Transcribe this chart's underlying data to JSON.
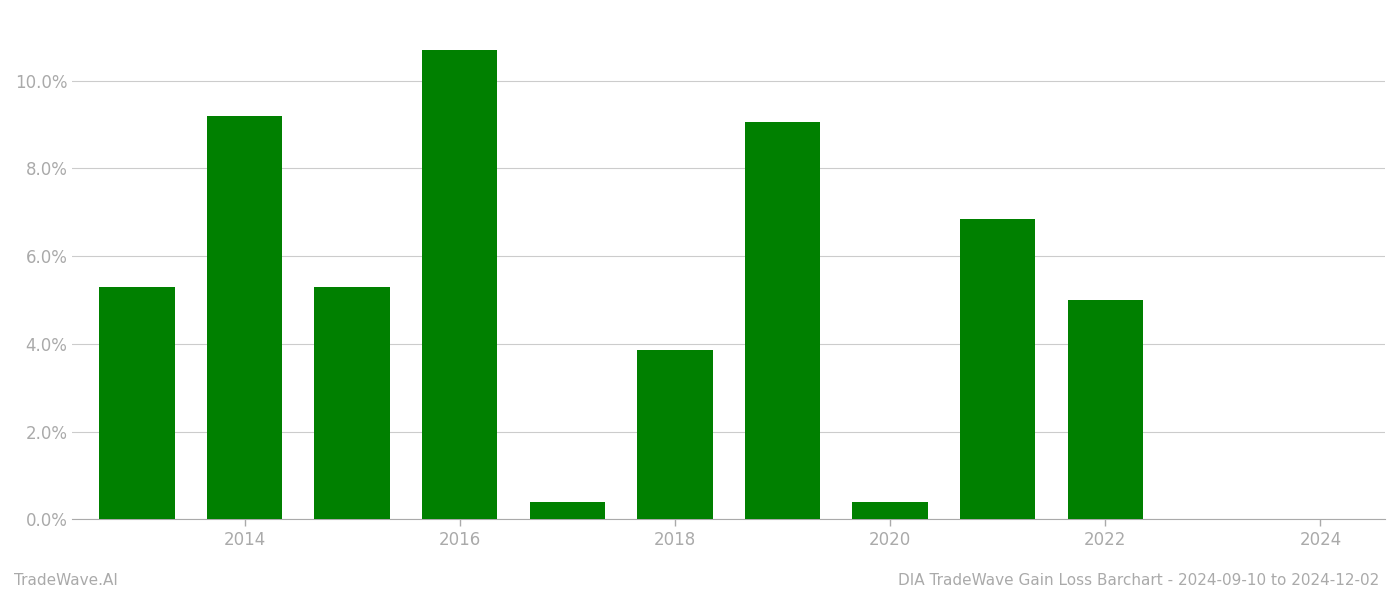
{
  "years": [
    2013,
    2014,
    2015,
    2016,
    2017,
    2018,
    2019,
    2020,
    2021,
    2022,
    2023
  ],
  "values": [
    0.053,
    0.092,
    0.053,
    0.107,
    0.004,
    0.0385,
    0.0905,
    0.004,
    0.0685,
    0.05,
    0.0
  ],
  "bar_color": "#008000",
  "background_color": "#ffffff",
  "title": "DIA TradeWave Gain Loss Barchart - 2024-09-10 to 2024-12-02",
  "watermark": "TradeWave.AI",
  "ylabel_ticks": [
    0.0,
    0.02,
    0.04,
    0.06,
    0.08,
    0.1
  ],
  "ylim": [
    0,
    0.115
  ],
  "xlim": [
    2012.4,
    2024.6
  ],
  "xticks": [
    2014,
    2016,
    2018,
    2020,
    2022,
    2024
  ],
  "grid_color": "#cccccc",
  "tick_color": "#aaaaaa",
  "title_fontsize": 11,
  "watermark_fontsize": 11,
  "axis_tick_fontsize": 12,
  "bar_width": 0.7
}
